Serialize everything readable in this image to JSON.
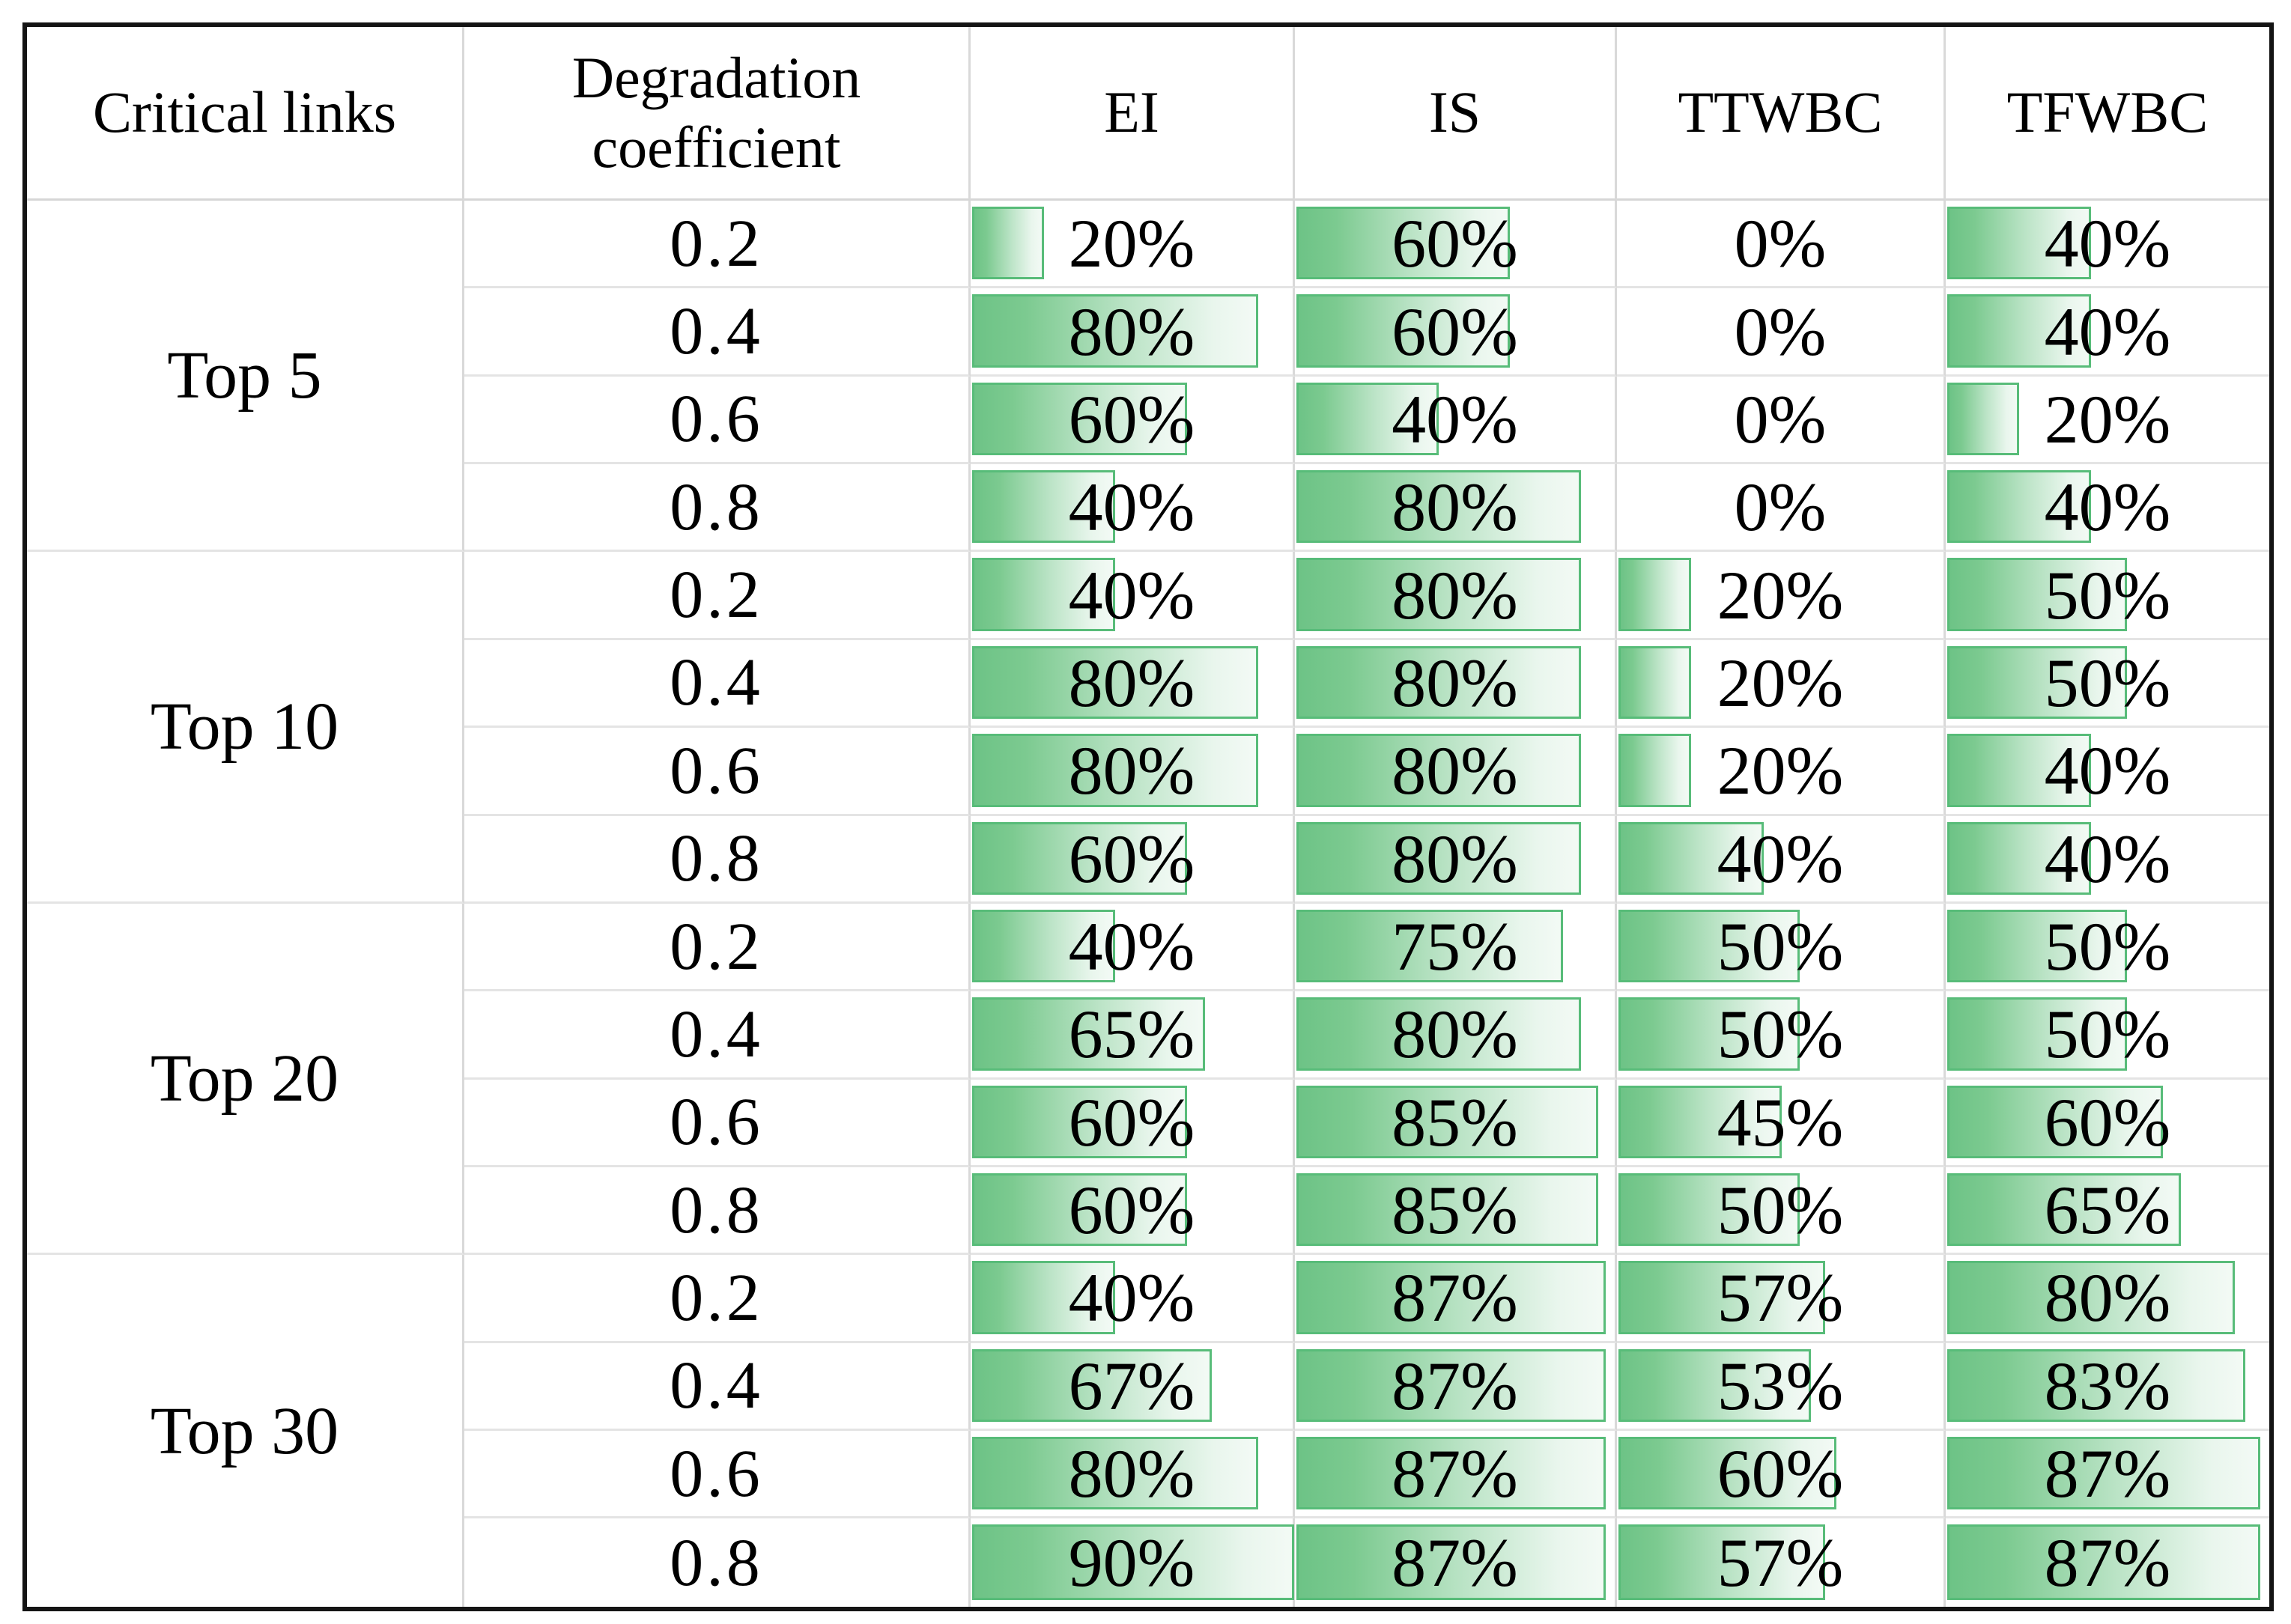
{
  "table": {
    "columns": [
      {
        "key": "critical_links",
        "label": "Critical links"
      },
      {
        "key": "degradation_coefficient",
        "label": "Degradation coefficient"
      },
      {
        "key": "EI",
        "label": "EI"
      },
      {
        "key": "IS",
        "label": "IS"
      },
      {
        "key": "TTWBC",
        "label": "TTWBC"
      },
      {
        "key": "TFWBC",
        "label": "TFWBC"
      }
    ],
    "metric_keys": [
      "EI",
      "IS",
      "TTWBC",
      "TFWBC"
    ],
    "groups": [
      {
        "label": "Top 5",
        "rows": [
          {
            "coefficient": "0.2",
            "EI": 20,
            "IS": 60,
            "TTWBC": 0,
            "TFWBC": 40
          },
          {
            "coefficient": "0.4",
            "EI": 80,
            "IS": 60,
            "TTWBC": 0,
            "TFWBC": 40
          },
          {
            "coefficient": "0.6",
            "EI": 60,
            "IS": 40,
            "TTWBC": 0,
            "TFWBC": 20
          },
          {
            "coefficient": "0.8",
            "EI": 40,
            "IS": 80,
            "TTWBC": 0,
            "TFWBC": 40
          }
        ]
      },
      {
        "label": "Top 10",
        "rows": [
          {
            "coefficient": "0.2",
            "EI": 40,
            "IS": 80,
            "TTWBC": 20,
            "TFWBC": 50
          },
          {
            "coefficient": "0.4",
            "EI": 80,
            "IS": 80,
            "TTWBC": 20,
            "TFWBC": 50
          },
          {
            "coefficient": "0.6",
            "EI": 80,
            "IS": 80,
            "TTWBC": 20,
            "TFWBC": 40
          },
          {
            "coefficient": "0.8",
            "EI": 60,
            "IS": 80,
            "TTWBC": 40,
            "TFWBC": 40
          }
        ]
      },
      {
        "label": "Top 20",
        "rows": [
          {
            "coefficient": "0.2",
            "EI": 40,
            "IS": 75,
            "TTWBC": 50,
            "TFWBC": 50
          },
          {
            "coefficient": "0.4",
            "EI": 65,
            "IS": 80,
            "TTWBC": 50,
            "TFWBC": 50
          },
          {
            "coefficient": "0.6",
            "EI": 60,
            "IS": 85,
            "TTWBC": 45,
            "TFWBC": 60
          },
          {
            "coefficient": "0.8",
            "EI": 60,
            "IS": 85,
            "TTWBC": 50,
            "TFWBC": 65
          }
        ]
      },
      {
        "label": "Top 30",
        "rows": [
          {
            "coefficient": "0.2",
            "EI": 40,
            "IS": 87,
            "TTWBC": 57,
            "TFWBC": 80
          },
          {
            "coefficient": "0.4",
            "EI": 67,
            "IS": 87,
            "TTWBC": 53,
            "TFWBC": 83
          },
          {
            "coefficient": "0.6",
            "EI": 80,
            "IS": 87,
            "TTWBC": 60,
            "TFWBC": 87
          },
          {
            "coefficient": "0.8",
            "EI": 90,
            "IS": 87,
            "TTWBC": 57,
            "TFWBC": 87
          }
        ]
      }
    ],
    "bar": {
      "scale_min": 0,
      "scale_max": 90,
      "border_color": "#58bc79",
      "fill_gradient_start": "#6dc386",
      "fill_gradient_end": "#f3faf5"
    }
  },
  "chart_data": {
    "type": "table",
    "title": "",
    "columns": [
      "Critical links",
      "Degradation coefficient",
      "EI",
      "IS",
      "TTWBC",
      "TFWBC"
    ],
    "row_groups": [
      "Top 5",
      "Top 10",
      "Top 20",
      "Top 30"
    ],
    "degradation_coefficients": [
      0.2,
      0.4,
      0.6,
      0.8
    ],
    "values_percent": {
      "Top 5": {
        "EI": [
          20,
          80,
          60,
          40
        ],
        "IS": [
          60,
          60,
          40,
          80
        ],
        "TTWBC": [
          0,
          0,
          0,
          0
        ],
        "TFWBC": [
          40,
          40,
          20,
          40
        ]
      },
      "Top 10": {
        "EI": [
          40,
          80,
          80,
          60
        ],
        "IS": [
          80,
          80,
          80,
          80
        ],
        "TTWBC": [
          20,
          20,
          20,
          40
        ],
        "TFWBC": [
          50,
          50,
          40,
          40
        ]
      },
      "Top 20": {
        "EI": [
          40,
          65,
          60,
          60
        ],
        "IS": [
          75,
          80,
          85,
          85
        ],
        "TTWBC": [
          50,
          50,
          45,
          50
        ],
        "TFWBC": [
          50,
          50,
          60,
          65
        ]
      },
      "Top 30": {
        "EI": [
          40,
          67,
          80,
          90
        ],
        "IS": [
          87,
          87,
          87,
          87
        ],
        "TTWBC": [
          57,
          53,
          60,
          57
        ],
        "TFWBC": [
          80,
          83,
          87,
          87
        ]
      }
    },
    "bar_scale": {
      "min": 0,
      "max": 90
    },
    "bar_style": "excel-green-gradient-data-bars",
    "legend": "none",
    "grid": "light-gray cell borders, thick black outer frame"
  }
}
